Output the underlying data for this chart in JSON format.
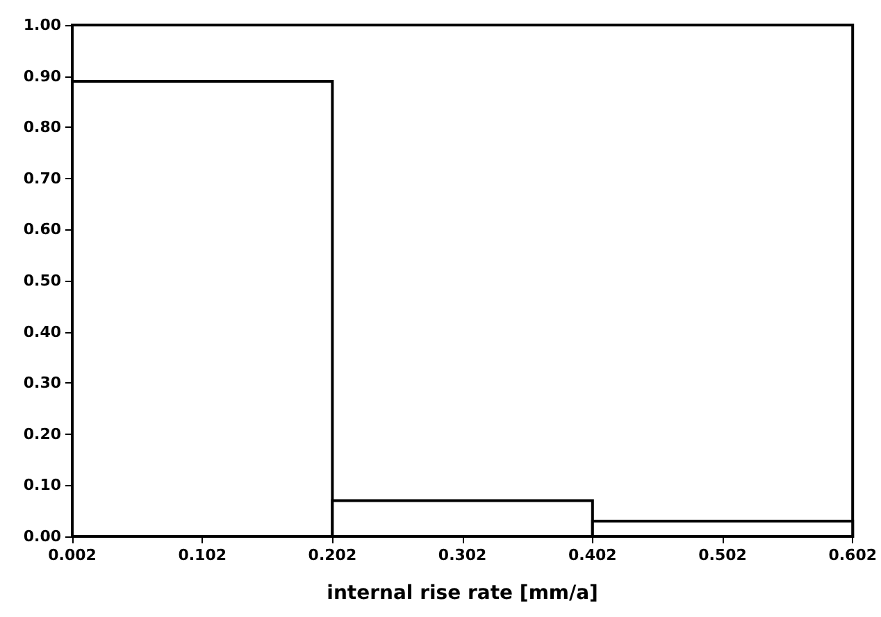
{
  "chart_data": {
    "type": "histogram",
    "xlabel": "internal rise rate [mm/a]",
    "bins": [
      0.002,
      0.202,
      0.402,
      0.602
    ],
    "values": [
      0.89,
      0.07,
      0.03
    ],
    "color": "#ffffff",
    "xlim": [
      0.002,
      0.602
    ],
    "xticks": [
      0.002,
      0.102,
      0.202,
      0.302,
      0.402,
      0.502,
      0.602
    ],
    "ylim": [
      0,
      1
    ],
    "yticks": [
      {
        "value": 0,
        "label": "0.00"
      },
      {
        "value": 0.1,
        "label": "0.10"
      },
      {
        "value": 0.2,
        "label": "0.20"
      },
      {
        "value": 0.3,
        "label": "0.30"
      },
      {
        "value": 0.4,
        "label": "0.40"
      },
      {
        "value": 0.5,
        "label": "0.50"
      },
      {
        "value": 0.6,
        "label": "0.60"
      },
      {
        "value": 0.7,
        "label": "0.70"
      },
      {
        "value": 0.8,
        "label": "0.80"
      },
      {
        "value": 0.9,
        "label": "0.90"
      },
      {
        "value": 1,
        "label": "1.00"
      }
    ],
    "grid": false
  }
}
